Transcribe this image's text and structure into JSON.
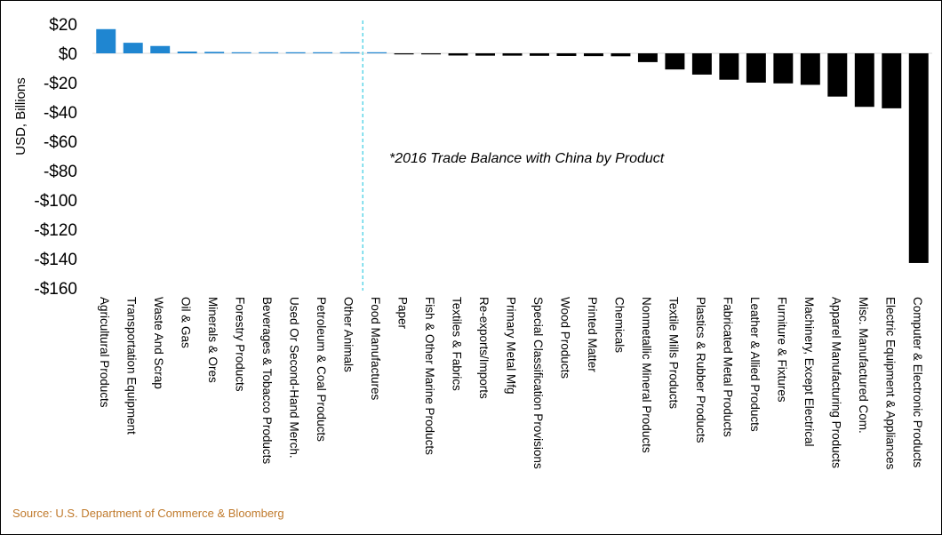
{
  "chart_data": {
    "type": "bar",
    "title": "",
    "annotation": "*2016 Trade Balance with China by Product",
    "ylabel": "USD, Billions",
    "xlabel": "",
    "ylim": [
      -160,
      20
    ],
    "yticks": [
      20,
      0,
      -20,
      -40,
      -60,
      -80,
      -100,
      -120,
      -140,
      -160
    ],
    "ytick_labels": [
      "$20",
      "$0",
      "-$20",
      "-$40",
      "-$60",
      "-$80",
      "-$100",
      "-$120",
      "-$140",
      "-$160"
    ],
    "categories": [
      "Agricultural Products",
      "Transportation Equipment",
      "Waste And Scrap",
      "Oil & Gas",
      "Minerals & Ores",
      "Forestry Products",
      "Beverages & Tobacco Products",
      "Used Or Second-Hand Merch.",
      "Petroleum & Coal Products",
      "Other Animals",
      "Food Manufactures",
      "Paper",
      "Fish & Other Marine Products",
      "Textiles & Fabrics",
      "Re-exports/Imports",
      "Primary Metal Mfg",
      "Special Classification Provisions",
      "Wood Products",
      "Printed Matter",
      "Chemicals",
      "Nonmetallic Mineral Products",
      "Textile Mills Products",
      "Plastics & Rubber Products",
      "Fabricated Metal Products",
      "Leather & Allied Products",
      "Furniture & Fixtures",
      "Machinery, Except Electrical",
      "Apparel Manufacturing Products",
      "Misc. Manufactured Com.",
      "Electric Equipment & Appliances",
      "Computer & Electronic Products"
    ],
    "values": [
      16.5,
      7.2,
      5.0,
      1.2,
      1.0,
      0.5,
      0.2,
      0.1,
      0.1,
      0.05,
      0.0,
      -0.5,
      -0.7,
      -1.5,
      -1.6,
      -1.6,
      -1.7,
      -1.8,
      -1.9,
      -2.0,
      -6.0,
      -11.0,
      -14.5,
      -18.0,
      -20.0,
      -20.5,
      -21.5,
      -29.5,
      -36.5,
      -37.5,
      -143.0
    ],
    "positive_color": "#1f86d1",
    "negative_color": "#000000",
    "divider_color": "#5fd6e8",
    "divider_after_category": "Other Animals"
  },
  "source": "Source: U.S. Department of Commerce & Bloomberg"
}
